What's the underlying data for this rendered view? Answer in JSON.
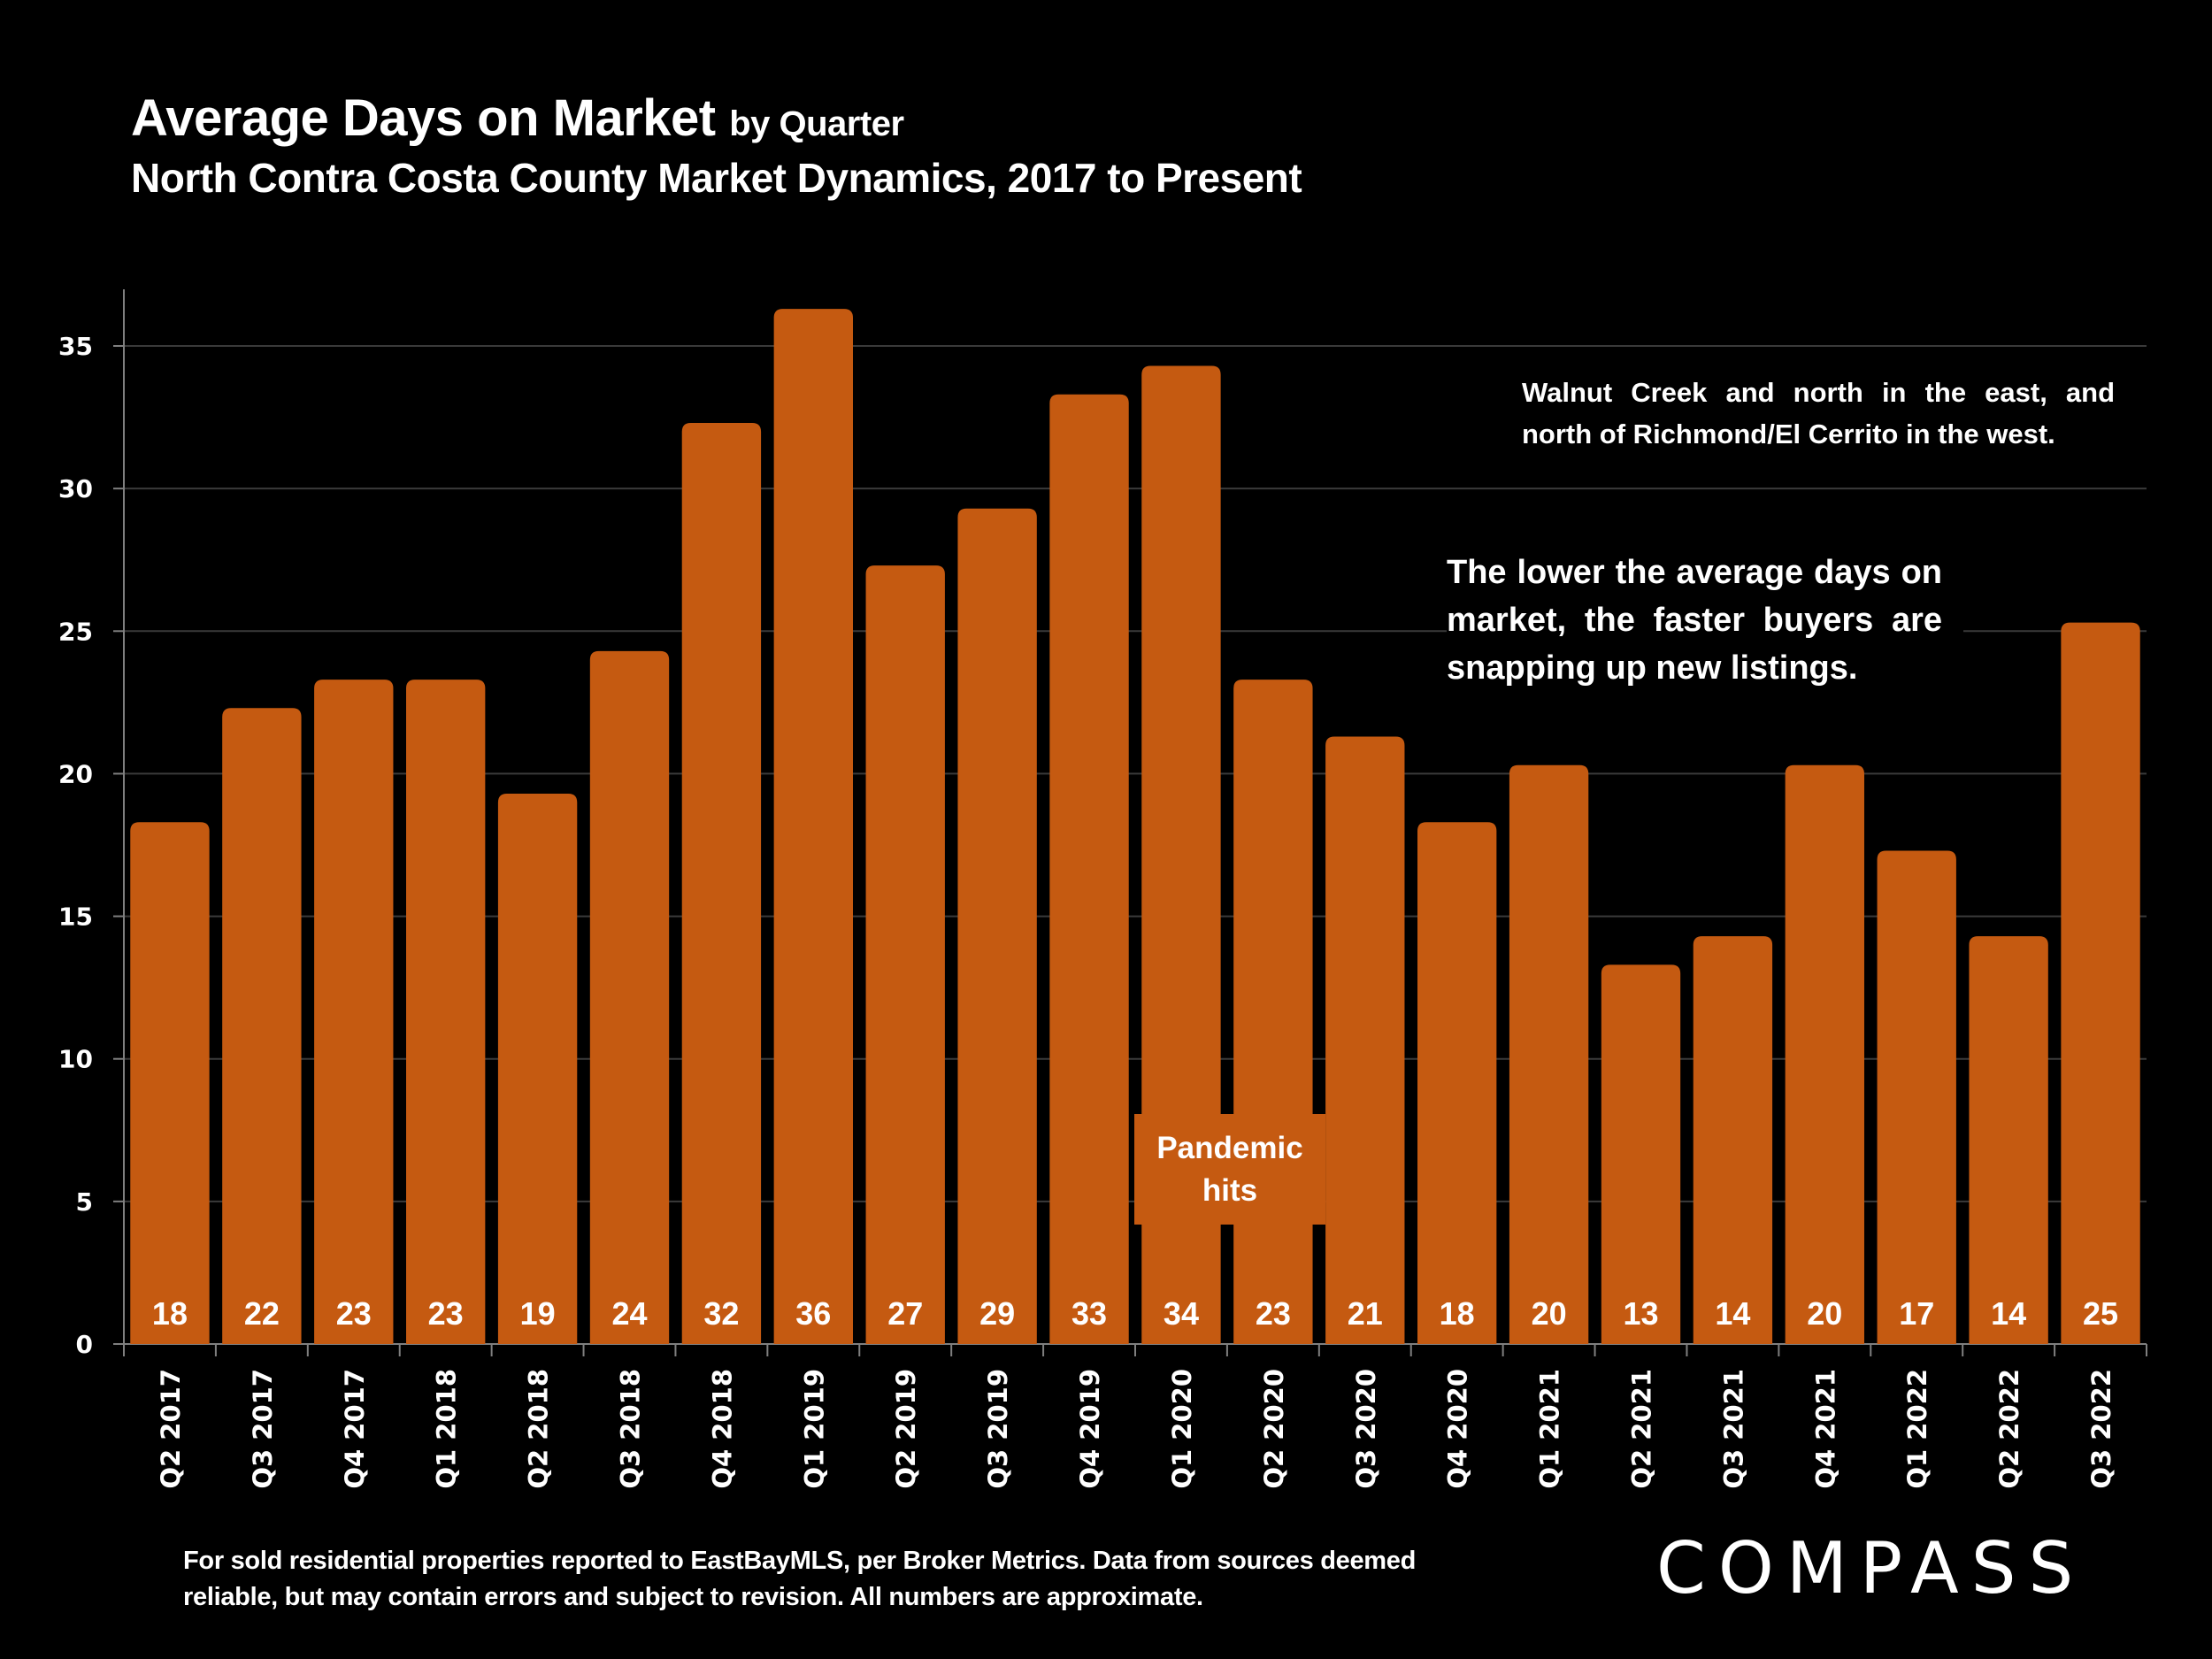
{
  "header": {
    "title_main": "Average Days on Market",
    "title_suffix": "by Quarter",
    "subtitle": "North Contra Costa County Market Dynamics, 2017 to Present"
  },
  "annotations": {
    "region_note": "Walnut Creek and north in the east, and north of Richmond/El Cerrito in the west.",
    "insight_note": "The lower the average days on market, the faster buyers are snapping up new listings.",
    "event_label_line1": "Pandemic",
    "event_label_line2": "hits"
  },
  "footer": {
    "disclaimer": "For sold residential properties reported to EastBayMLS, per Broker Metrics. Data from sources deemed reliable, but may contain errors and subject to revision. All numbers are approximate.",
    "logo_text": "COMPASS"
  },
  "colors": {
    "bar": "#C55A11",
    "background": "#000000",
    "text": "#FFFFFF",
    "grid": "#3a3a3a",
    "axis": "#7f7f7f"
  },
  "chart_data": {
    "type": "bar",
    "title": "Average Days on Market by Quarter",
    "subtitle": "North Contra Costa County Market Dynamics, 2017 to Present",
    "xlabel": "",
    "ylabel": "",
    "ylim": [
      0,
      37
    ],
    "yticks": [
      0,
      5,
      10,
      15,
      20,
      25,
      30,
      35
    ],
    "grid": true,
    "legend": "none",
    "categories": [
      "Q2 2017",
      "Q3 2017",
      "Q4 2017",
      "Q1 2018",
      "Q2 2018",
      "Q3 2018",
      "Q4 2018",
      "Q1 2019",
      "Q2 2019",
      "Q3 2019",
      "Q4 2019",
      "Q1 2020",
      "Q2 2020",
      "Q3 2020",
      "Q4 2020",
      "Q1 2021",
      "Q2 2021",
      "Q3 2021",
      "Q4 2021",
      "Q1 2022",
      "Q2 2022",
      "Q3 2022"
    ],
    "values": [
      18,
      22,
      23,
      23,
      19,
      24,
      32,
      36,
      27,
      29,
      33,
      34,
      23,
      21,
      18,
      20,
      13,
      14,
      20,
      17,
      14,
      25
    ],
    "data_labels": [
      "18",
      "22",
      "23",
      "23",
      "19",
      "24",
      "32",
      "36",
      "27",
      "29",
      "33",
      "34",
      "23",
      "21",
      "18",
      "20",
      "13",
      "14",
      "20",
      "17",
      "14",
      "25"
    ]
  }
}
